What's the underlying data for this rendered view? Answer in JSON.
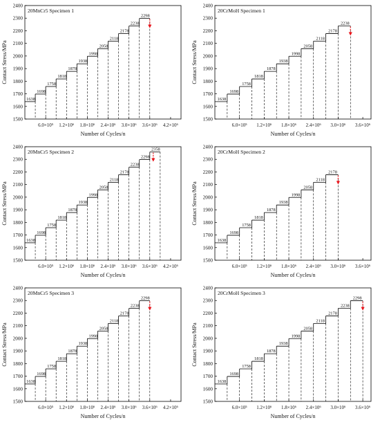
{
  "chart_data": [
    {
      "type": "step",
      "title": "20MnCr5 Specimen 1",
      "xlabel": "Number of Cycles/n",
      "ylabel": "Contact Stress/MPa",
      "ylim": [
        1500,
        2400
      ],
      "yticks": [
        "1500",
        "1600",
        "1700",
        "1800",
        "1900",
        "2000",
        "2100",
        "2200",
        "2300",
        "2400"
      ],
      "xlim": [
        0,
        4500000
      ],
      "xticks": [
        {
          "value": 600000,
          "label": "6.0×10⁵"
        },
        {
          "value": 1200000,
          "label": "1.2×10⁶"
        },
        {
          "value": 1800000,
          "label": "1.8×10⁶"
        },
        {
          "value": 2400000,
          "label": "2.4×10⁶"
        },
        {
          "value": 3000000,
          "label": "3.0×10⁶"
        },
        {
          "value": 3600000,
          "label": "3.6×10⁶"
        },
        {
          "value": 4200000,
          "label": "4.2×10⁶"
        }
      ],
      "step_cycles": 300000,
      "steps": [
        1638,
        1698,
        1758,
        1818,
        1878,
        1938,
        1998,
        2058,
        2118,
        2178,
        2238,
        2298
      ],
      "step_labels": [
        "1638",
        "1698",
        "1758",
        "1818",
        "1878",
        "1938",
        "1998",
        "2058",
        "2118",
        "2178",
        "2238",
        "2298"
      ],
      "failure_marker": {
        "cycles": 3600000,
        "stress": 2298
      },
      "marker_color": "#e8141b"
    },
    {
      "type": "step",
      "title": "20CrMoH Specimen 1",
      "xlabel": "Number of Cycles/n",
      "ylabel": "Contact Stress/MPa",
      "ylim": [
        1500,
        2400
      ],
      "yticks": [
        "1500",
        "1600",
        "1700",
        "1800",
        "1900",
        "2000",
        "2100",
        "2200",
        "2300",
        "2400"
      ],
      "xlim": [
        0,
        3800000
      ],
      "xticks": [
        {
          "value": 600000,
          "label": "6.0×10⁵"
        },
        {
          "value": 1200000,
          "label": "1.2×10⁶"
        },
        {
          "value": 1800000,
          "label": "1.8×10⁶"
        },
        {
          "value": 2400000,
          "label": "2.4×10⁶"
        },
        {
          "value": 3000000,
          "label": "3.0×10⁶"
        },
        {
          "value": 3600000,
          "label": "3.6×10⁶"
        }
      ],
      "step_cycles": 300000,
      "steps": [
        1638,
        1698,
        1758,
        1818,
        1878,
        1938,
        1998,
        2058,
        2118,
        2178,
        2238
      ],
      "step_labels": [
        "1638",
        "1698",
        "1758",
        "1818",
        "1878",
        "1938",
        "1998",
        "2058",
        "2118",
        "2178",
        "2238"
      ],
      "failure_marker": {
        "cycles": 3300000,
        "stress": 2238
      },
      "marker_color": "#e8141b"
    },
    {
      "type": "step",
      "title": "20MnCr5 Specimen 2",
      "xlabel": "Number of Cycles/n",
      "ylabel": "Contact Stress/MPa",
      "ylim": [
        1500,
        2400
      ],
      "yticks": [
        "1500",
        "1600",
        "1700",
        "1800",
        "1900",
        "2000",
        "2100",
        "2200",
        "2300",
        "2400"
      ],
      "xlim": [
        0,
        4500000
      ],
      "xticks": [
        {
          "value": 600000,
          "label": "6.0×10⁵"
        },
        {
          "value": 1200000,
          "label": "1.2×10⁶"
        },
        {
          "value": 1800000,
          "label": "1.8×10⁶"
        },
        {
          "value": 2400000,
          "label": "2.4×10⁶"
        },
        {
          "value": 3000000,
          "label": "3.0×10⁶"
        },
        {
          "value": 3600000,
          "label": "3.6×10⁶"
        },
        {
          "value": 4200000,
          "label": "4.2×10⁶"
        }
      ],
      "step_cycles": 300000,
      "steps": [
        1638,
        1698,
        1758,
        1818,
        1878,
        1938,
        1998,
        2058,
        2118,
        2178,
        2238,
        2298,
        2358
      ],
      "step_labels": [
        "1638",
        "1698",
        "1758",
        "1818",
        "1878",
        "1938",
        "1998",
        "2058",
        "2118",
        "2178",
        "2238",
        "2298",
        "2358"
      ],
      "failure_marker": {
        "cycles": 3700000,
        "stress": 2358
      },
      "marker_color": "#e8141b"
    },
    {
      "type": "step",
      "title": "20CrMoH Specimen 2",
      "xlabel": "Number of Cycles/n",
      "ylabel": "Contact Stress/MPa",
      "ylim": [
        1500,
        2400
      ],
      "yticks": [
        "1500",
        "1600",
        "1700",
        "1800",
        "1900",
        "2000",
        "2100",
        "2200",
        "2300",
        "2400"
      ],
      "xlim": [
        0,
        3800000
      ],
      "xticks": [
        {
          "value": 600000,
          "label": "6.0×10⁵"
        },
        {
          "value": 1200000,
          "label": "1.2×10⁶"
        },
        {
          "value": 1800000,
          "label": "1.8×10⁶"
        },
        {
          "value": 2400000,
          "label": "2.4×10⁶"
        },
        {
          "value": 3000000,
          "label": "3.0×10⁶"
        },
        {
          "value": 3600000,
          "label": "3.6×10⁶"
        }
      ],
      "step_cycles": 300000,
      "steps": [
        1638,
        1698,
        1758,
        1818,
        1878,
        1938,
        1998,
        2058,
        2118,
        2178
      ],
      "step_labels": [
        "1638",
        "1698",
        "1758",
        "1818",
        "1878",
        "1938",
        "1998",
        "2058",
        "2118",
        "2178"
      ],
      "failure_marker": {
        "cycles": 3000000,
        "stress": 2178
      },
      "marker_color": "#e8141b"
    },
    {
      "type": "step",
      "title": "20MnCr5 Specimen 3",
      "xlabel": "Number of Cycles/n",
      "ylabel": "Contact Stress/MPa",
      "ylim": [
        1500,
        2400
      ],
      "yticks": [
        "1500",
        "1600",
        "1700",
        "1800",
        "1900",
        "2000",
        "2100",
        "2200",
        "2300",
        "2400"
      ],
      "xlim": [
        0,
        4500000
      ],
      "xticks": [
        {
          "value": 600000,
          "label": "6.0×10⁵"
        },
        {
          "value": 1200000,
          "label": "1.2×10⁶"
        },
        {
          "value": 1800000,
          "label": "1.8×10⁶"
        },
        {
          "value": 2400000,
          "label": "2.4×10⁶"
        },
        {
          "value": 3000000,
          "label": "3.0×10⁶"
        },
        {
          "value": 3600000,
          "label": "3.6×10⁶"
        },
        {
          "value": 4200000,
          "label": "4.2×10⁶"
        }
      ],
      "step_cycles": 300000,
      "steps": [
        1638,
        1698,
        1758,
        1818,
        1878,
        1938,
        1998,
        2058,
        2118,
        2178,
        2238,
        2298
      ],
      "step_labels": [
        "1638",
        "1698",
        "1758",
        "1818",
        "1878",
        "1938",
        "1998",
        "2058",
        "2118",
        "2178",
        "2238",
        "2298"
      ],
      "failure_marker": {
        "cycles": 3600000,
        "stress": 2298
      },
      "marker_color": "#e8141b"
    },
    {
      "type": "step",
      "title": "20CrMoH Specimen 3",
      "xlabel": "Number of Cycles/n",
      "ylabel": "Contact Stress/MPa",
      "ylim": [
        1500,
        2400
      ],
      "yticks": [
        "1500",
        "1600",
        "1700",
        "1800",
        "1900",
        "2000",
        "2100",
        "2200",
        "2300",
        "2400"
      ],
      "xlim": [
        0,
        3800000
      ],
      "xticks": [
        {
          "value": 600000,
          "label": "6.0×10⁵"
        },
        {
          "value": 1200000,
          "label": "1.2×10⁶"
        },
        {
          "value": 1800000,
          "label": "1.8×10⁶"
        },
        {
          "value": 2400000,
          "label": "2.4×10⁶"
        },
        {
          "value": 3000000,
          "label": "3.0×10⁶"
        },
        {
          "value": 3600000,
          "label": "3.6×10⁶"
        }
      ],
      "step_cycles": 300000,
      "steps": [
        1638,
        1698,
        1758,
        1818,
        1878,
        1938,
        1998,
        2058,
        2118,
        2178,
        2238,
        2298
      ],
      "step_labels": [
        "1638",
        "1698",
        "1758",
        "1818",
        "1878",
        "1938",
        "1998",
        "2058",
        "2118",
        "2178",
        "2238",
        "2298"
      ],
      "failure_marker": {
        "cycles": 3600000,
        "stress": 2298
      },
      "marker_color": "#e8141b"
    }
  ]
}
